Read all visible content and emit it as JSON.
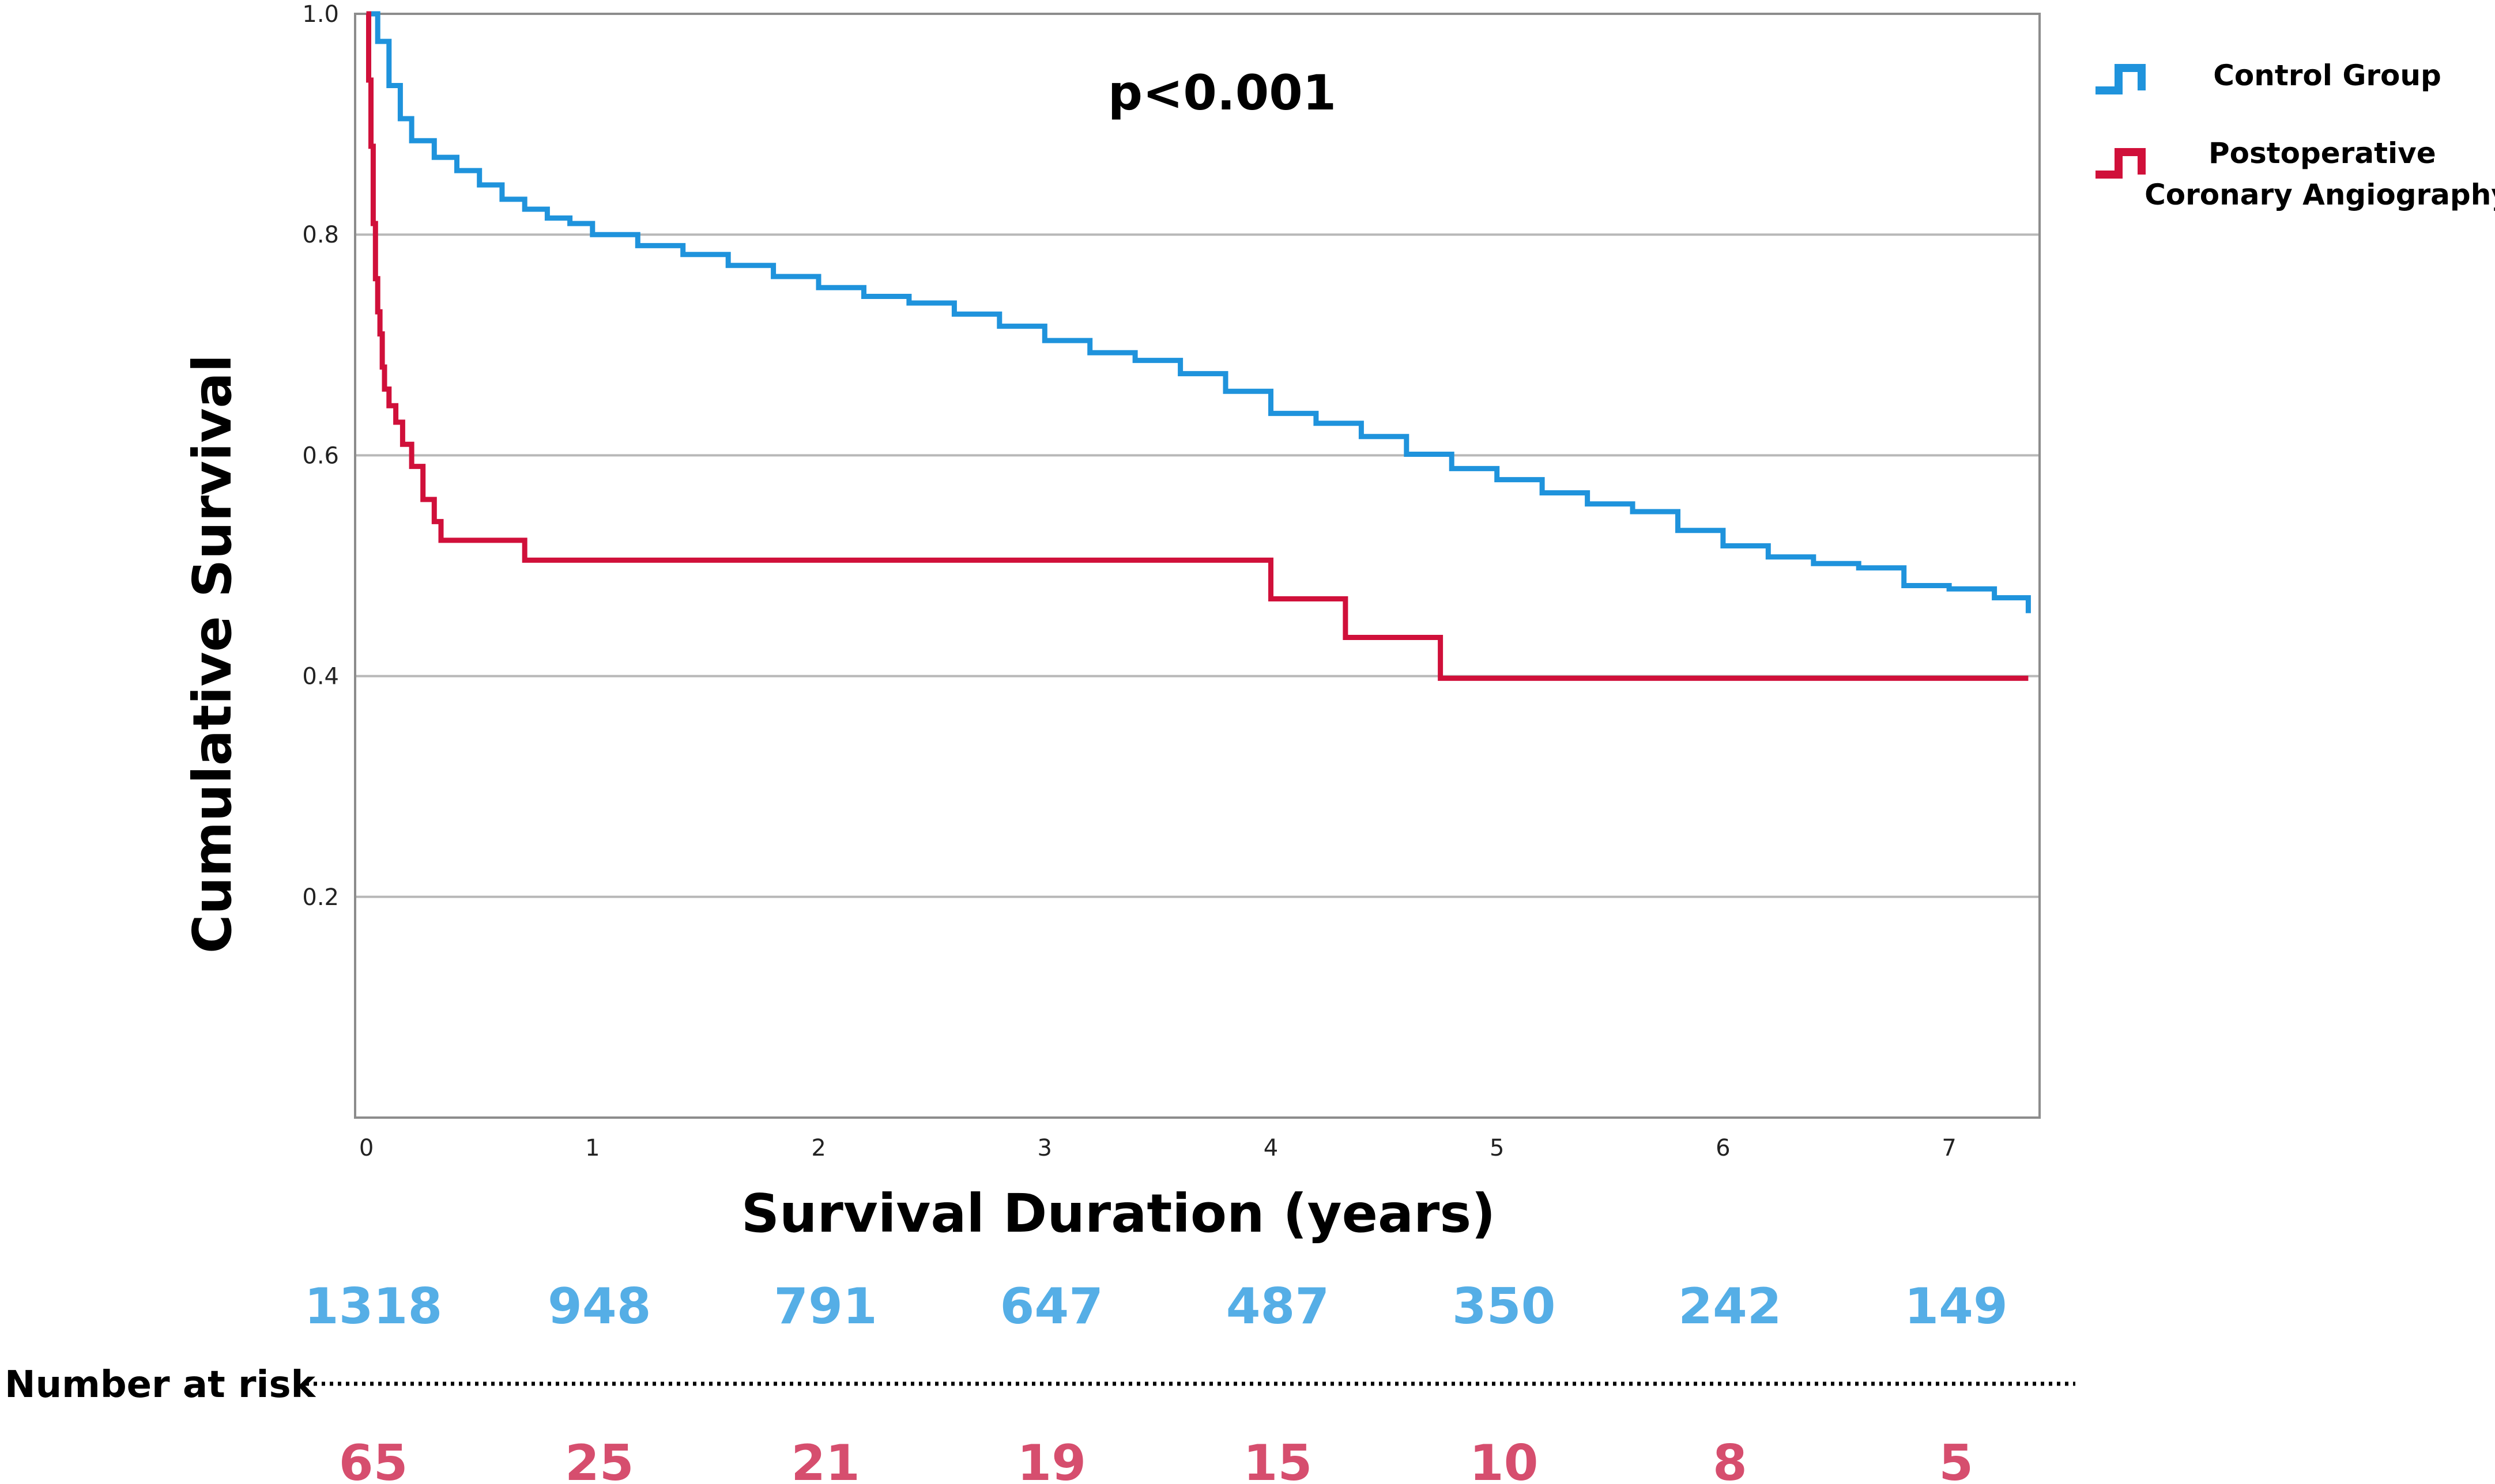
{
  "chart_data": {
    "type": "line",
    "subtype": "kaplan-meier step",
    "title": "",
    "annotation": "p<0.001",
    "xlabel": "Survival Duration (years)",
    "ylabel": "Cumulative Survival",
    "xlim": [
      -0.05,
      7.4
    ],
    "ylim": [
      0.0,
      1.0
    ],
    "x_ticks": [
      {
        "value": 0,
        "label": "0"
      },
      {
        "value": 1,
        "label": "1"
      },
      {
        "value": 2,
        "label": "2"
      },
      {
        "value": 3,
        "label": "3"
      },
      {
        "value": 4,
        "label": "4"
      },
      {
        "value": 5,
        "label": "5"
      },
      {
        "value": 6,
        "label": "6"
      },
      {
        "value": 7,
        "label": "7"
      }
    ],
    "y_ticks": [
      {
        "value": 0.2,
        "label": "0.2"
      },
      {
        "value": 0.4,
        "label": "0.4"
      },
      {
        "value": 0.6,
        "label": "0.6"
      },
      {
        "value": 0.8,
        "label": "0.8"
      },
      {
        "value": 1.0,
        "label": "1.0"
      }
    ],
    "grid": "horizontal",
    "legend_position": "top-right (outside plot)",
    "series": [
      {
        "name": "Control Group",
        "color": "#1f93dc",
        "x": [
          0,
          0.05,
          0.1,
          0.15,
          0.2,
          0.3,
          0.4,
          0.5,
          0.6,
          0.7,
          0.8,
          0.9,
          1.0,
          1.2,
          1.4,
          1.6,
          1.8,
          2.0,
          2.2,
          2.4,
          2.6,
          2.8,
          3.0,
          3.2,
          3.4,
          3.6,
          3.8,
          4.0,
          4.2,
          4.4,
          4.6,
          4.8,
          5.0,
          5.2,
          5.4,
          5.6,
          5.8,
          6.0,
          6.2,
          6.4,
          6.6,
          6.8,
          7.0,
          7.2,
          7.35
        ],
        "y": [
          1.0,
          0.975,
          0.935,
          0.905,
          0.885,
          0.87,
          0.858,
          0.845,
          0.832,
          0.823,
          0.815,
          0.81,
          0.8,
          0.79,
          0.782,
          0.772,
          0.762,
          0.752,
          0.744,
          0.738,
          0.728,
          0.717,
          0.704,
          0.693,
          0.686,
          0.674,
          0.658,
          0.638,
          0.629,
          0.617,
          0.601,
          0.588,
          0.578,
          0.566,
          0.556,
          0.549,
          0.532,
          0.518,
          0.508,
          0.502,
          0.498,
          0.482,
          0.479,
          0.471,
          0.457
        ]
      },
      {
        "name": "Postoperative Coronary Angiography",
        "color": "#d0103a",
        "x": [
          0,
          0.01,
          0.02,
          0.03,
          0.04,
          0.05,
          0.06,
          0.07,
          0.08,
          0.1,
          0.13,
          0.16,
          0.2,
          0.25,
          0.3,
          0.33,
          0.7,
          4.0,
          4.33,
          4.75,
          7.35
        ],
        "y": [
          1.0,
          0.94,
          0.88,
          0.81,
          0.76,
          0.73,
          0.71,
          0.68,
          0.66,
          0.645,
          0.63,
          0.61,
          0.59,
          0.56,
          0.54,
          0.523,
          0.505,
          0.47,
          0.435,
          0.398,
          0.398
        ]
      }
    ],
    "risk_table": {
      "label": "Number at risk",
      "control": [
        "1318",
        "948",
        "791",
        "647",
        "487",
        "350",
        "242",
        "149"
      ],
      "pca": [
        "65",
        "25",
        "21",
        "19",
        "15",
        "10",
        "8",
        "5"
      ],
      "control_color": "#55aee6",
      "pca_color": "#d64e6e"
    }
  }
}
